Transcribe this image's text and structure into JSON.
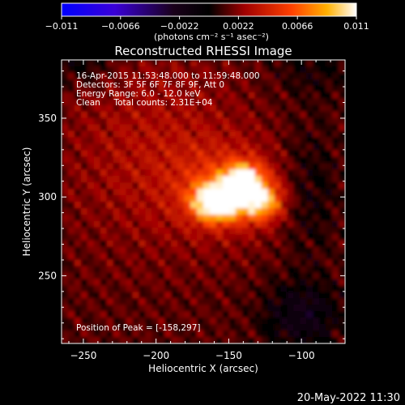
{
  "chart_data": {
    "type": "heatmap",
    "title": "Reconstructed RHESSI Image",
    "xlabel": "Heliocentric X (arcsec)",
    "ylabel": "Heliocentric Y (arcsec)",
    "xlim": [
      -265,
      -70
    ],
    "ylim": [
      207,
      387
    ],
    "x_ticks": [
      -250,
      -200,
      -150,
      -100
    ],
    "x_tick_labels": [
      "−250",
      "−200",
      "−150",
      "−100"
    ],
    "y_ticks": [
      250,
      300,
      350
    ],
    "y_tick_labels": [
      "250",
      "300",
      "350"
    ],
    "colorbar": {
      "range": [
        -0.011,
        0.011
      ],
      "ticks": [
        -0.011,
        -0.0066,
        -0.0022,
        0.0022,
        0.0066,
        0.011
      ],
      "tick_labels": [
        "−0.011",
        "−0.0066",
        "−0.0022",
        "0.0022",
        "0.0066",
        "0.011"
      ],
      "units_label": "(photons cm⁻² s⁻¹ asec⁻²)",
      "colors": [
        "#0000ff",
        "#4b00c8",
        "#000000",
        "#a00000",
        "#ff4000",
        "#ffb000",
        "#ffffff"
      ]
    },
    "annotations": [
      "16-Apr-2015 11:53:48.000 to 11:59:48.000",
      "Detectors: 3F 5F 6F 7F 8F 9F, Att 0",
      "Energy Range: 6.0 - 12.0 keV",
      "Clean     Total counts: 2.31E+04"
    ],
    "peak_label": "Position of Peak = [-158,297]",
    "peak": [
      -158,
      297
    ],
    "sources": [
      {
        "x": -158,
        "y": 297,
        "sx": 11,
        "sy": 8,
        "amp": 0.011
      },
      {
        "x": -140,
        "y": 311,
        "sx": 9,
        "sy": 7,
        "amp": 0.0085
      },
      {
        "x": -128,
        "y": 297,
        "sx": 10,
        "sy": 8,
        "amp": 0.0072
      },
      {
        "x": -150,
        "y": 305,
        "sx": 26,
        "sy": 19,
        "amp": 0.0035
      },
      {
        "x": -200,
        "y": 330,
        "sx": 45,
        "sy": 45,
        "amp": 0.002
      },
      {
        "x": -100,
        "y": 225,
        "sx": 18,
        "sy": 15,
        "amp": -0.003
      },
      {
        "x": -95,
        "y": 305,
        "sx": 14,
        "sy": 28,
        "amp": -0.0016
      },
      {
        "x": -250,
        "y": 385,
        "sx": 15,
        "sy": 10,
        "amp": -0.0018
      },
      {
        "x": -90,
        "y": 382,
        "sx": 22,
        "sy": 14,
        "amp": -0.0012
      }
    ]
  },
  "footer": {
    "date": "20-May-2022 11:30"
  }
}
